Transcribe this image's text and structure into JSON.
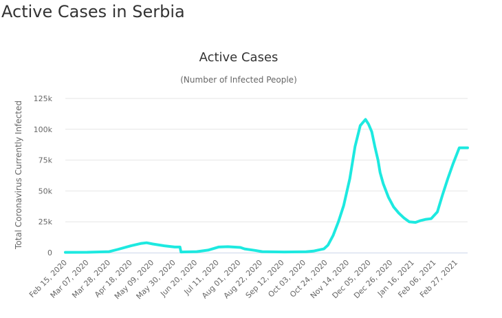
{
  "page": {
    "heading": "Active Cases in Serbia"
  },
  "colors": {
    "series": "#1de9e0",
    "text": "#333333",
    "muted": "#666666",
    "grid": "#e6e6e6"
  },
  "chart_data": {
    "type": "line",
    "title": "Active Cases",
    "subtitle": "(Number of Infected People)",
    "ylabel": "Total Coronavirus Currently Infected",
    "xlabel": "",
    "ylim": [
      0,
      125000
    ],
    "y_ticks": [
      0,
      25000,
      50000,
      75000,
      100000,
      125000
    ],
    "y_tick_labels": [
      "0",
      "25k",
      "50k",
      "75k",
      "100k",
      "125k"
    ],
    "x_range": [
      "2020-02-15",
      "2021-03-07"
    ],
    "x_tick_labels": [
      "Feb 15, 2020",
      "Mar 07, 2020",
      "Mar 28, 2020",
      "Apr 18, 2020",
      "May 09, 2020",
      "May 30, 2020",
      "Jun 20, 2020",
      "Jul 11, 2020",
      "Aug 01, 2020",
      "Aug 22, 2020",
      "Sep 12, 2020",
      "Oct 03, 2020",
      "Oct 24, 2020",
      "Nov 14, 2020",
      "Dec 05, 2020",
      "Dec 26, 2020",
      "Jan 16, 2021",
      "Feb 06, 2021",
      "Feb 27, 2021"
    ],
    "grid": true,
    "legend": "none",
    "series": [
      {
        "x": [
          "2020-02-15",
          "2020-03-07",
          "2020-03-28",
          "2020-04-05",
          "2020-04-18",
          "2020-04-28",
          "2020-05-03",
          "2020-05-09",
          "2020-05-20",
          "2020-05-30",
          "2020-06-04",
          "2020-06-05",
          "2020-06-20",
          "2020-07-01",
          "2020-07-11",
          "2020-07-20",
          "2020-08-01",
          "2020-08-05",
          "2020-08-15",
          "2020-08-22",
          "2020-09-12",
          "2020-10-03",
          "2020-10-10",
          "2020-10-20",
          "2020-10-24",
          "2020-10-29",
          "2020-11-03",
          "2020-11-08",
          "2020-11-14",
          "2020-11-19",
          "2020-11-24",
          "2020-11-29",
          "2020-12-02",
          "2020-12-05",
          "2020-12-08",
          "2020-12-11",
          "2020-12-13",
          "2020-12-16",
          "2020-12-21",
          "2020-12-26",
          "2020-12-31",
          "2021-01-05",
          "2021-01-10",
          "2021-01-16",
          "2021-01-21",
          "2021-01-26",
          "2021-01-31",
          "2021-02-06",
          "2021-02-11",
          "2021-02-16",
          "2021-02-21",
          "2021-02-27",
          "2021-03-04",
          "2021-03-07"
        ],
        "values": [
          200,
          300,
          800,
          2500,
          5500,
          7500,
          8000,
          7000,
          5500,
          4500,
          4500,
          500,
          800,
          2000,
          4500,
          4800,
          4200,
          3000,
          1800,
          800,
          500,
          700,
          1200,
          3000,
          6000,
          14000,
          25000,
          38000,
          60000,
          86000,
          103000,
          108000,
          104000,
          98000,
          86000,
          75000,
          65000,
          56000,
          45000,
          37000,
          32000,
          28000,
          25000,
          24500,
          26000,
          27000,
          27500,
          33000,
          47000,
          60000,
          72000,
          85000,
          85000,
          85000
        ]
      }
    ]
  }
}
